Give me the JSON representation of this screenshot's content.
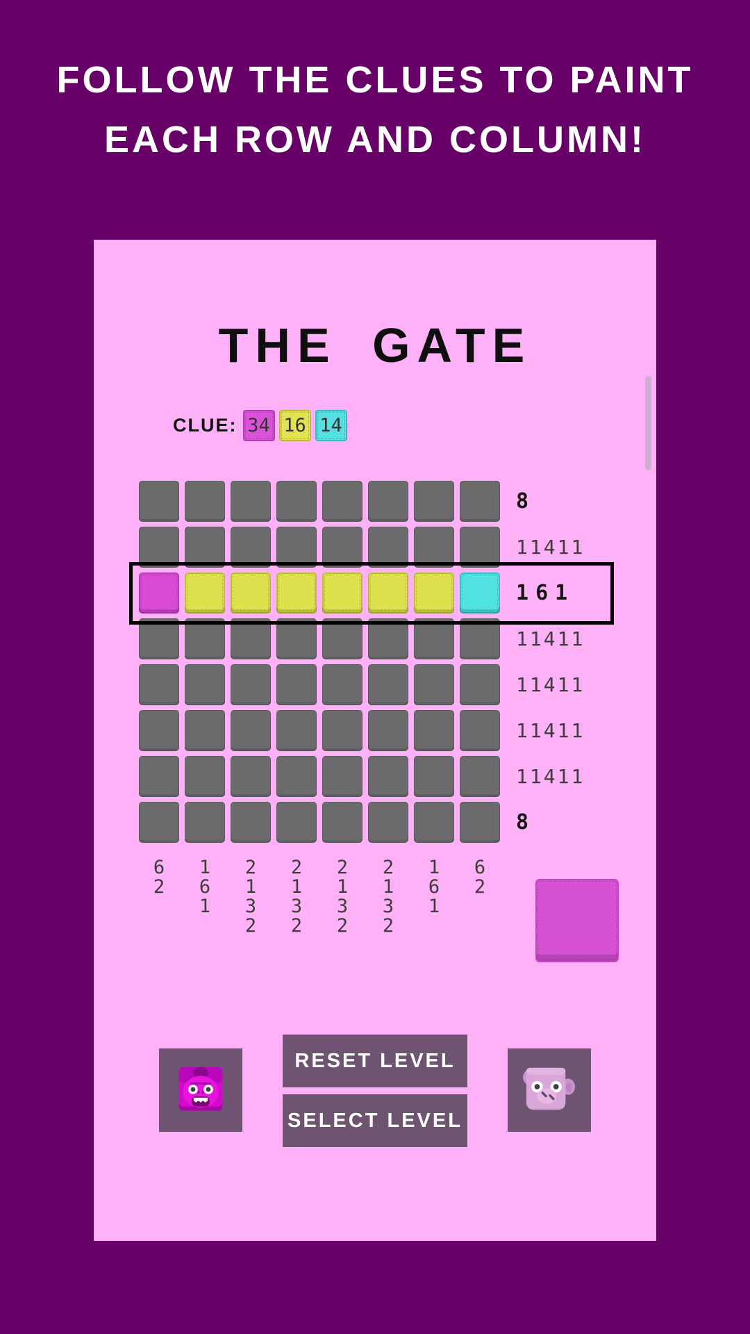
{
  "header": {
    "line1": "FOLLOW THE CLUES TO PAINT",
    "line2": "EACH ROW AND COLUMN!"
  },
  "level": {
    "title": "THE GATE"
  },
  "clue_bar": {
    "label": "CLUE:",
    "chips": [
      {
        "count": "34",
        "color_name": "magenta",
        "color": "#da52d8",
        "border": "#b43cb2"
      },
      {
        "count": "16",
        "color_name": "yellow",
        "color": "#e2e254",
        "border": "#b9b93f"
      },
      {
        "count": "14",
        "color_name": "cyan",
        "color": "#55dfe0",
        "border": "#3cb9ba"
      }
    ]
  },
  "grid": {
    "rows": 8,
    "cols": 8,
    "colors": {
      "empty": "#6b6a6c",
      "magenta": "#d94ad6",
      "yellow": "#dfe04e",
      "cyan": "#4fe2e0"
    },
    "cells": [
      [
        "empty",
        "empty",
        "empty",
        "empty",
        "empty",
        "empty",
        "empty",
        "empty"
      ],
      [
        "empty",
        "empty",
        "empty",
        "empty",
        "empty",
        "empty",
        "empty",
        "empty"
      ],
      [
        "magenta",
        "yellow",
        "yellow",
        "yellow",
        "yellow",
        "yellow",
        "yellow",
        "cyan"
      ],
      [
        "empty",
        "empty",
        "empty",
        "empty",
        "empty",
        "empty",
        "empty",
        "empty"
      ],
      [
        "empty",
        "empty",
        "empty",
        "empty",
        "empty",
        "empty",
        "empty",
        "empty"
      ],
      [
        "empty",
        "empty",
        "empty",
        "empty",
        "empty",
        "empty",
        "empty",
        "empty"
      ],
      [
        "empty",
        "empty",
        "empty",
        "empty",
        "empty",
        "empty",
        "empty",
        "empty"
      ],
      [
        "empty",
        "empty",
        "empty",
        "empty",
        "empty",
        "empty",
        "empty",
        "empty"
      ]
    ]
  },
  "row_clues": [
    {
      "digits": [
        "8"
      ],
      "bold": true
    },
    {
      "digits": [
        "1",
        "1",
        "4",
        "1",
        "1"
      ],
      "bold": false
    },
    {
      "digits": [
        "1",
        "6",
        "1"
      ],
      "bold": true
    },
    {
      "digits": [
        "1",
        "1",
        "4",
        "1",
        "1"
      ],
      "bold": false
    },
    {
      "digits": [
        "1",
        "1",
        "4",
        "1",
        "1"
      ],
      "bold": false
    },
    {
      "digits": [
        "1",
        "1",
        "4",
        "1",
        "1"
      ],
      "bold": false
    },
    {
      "digits": [
        "1",
        "1",
        "4",
        "1",
        "1"
      ],
      "bold": false
    },
    {
      "digits": [
        "8"
      ],
      "bold": true
    }
  ],
  "col_clues": [
    [
      "6",
      "2"
    ],
    [
      "1",
      "6",
      "1"
    ],
    [
      "2",
      "1",
      "3",
      "2"
    ],
    [
      "2",
      "1",
      "3",
      "2"
    ],
    [
      "2",
      "1",
      "3",
      "2"
    ],
    [
      "2",
      "1",
      "3",
      "2"
    ],
    [
      "1",
      "6",
      "1"
    ],
    [
      "6",
      "2"
    ]
  ],
  "highlight_row_index": 2,
  "palette": {
    "selected_color": "#d552d3",
    "selected_border": "#c644c4"
  },
  "buttons": {
    "reset": "RESET LEVEL",
    "select": "SELECT LEVEL"
  },
  "icons": {
    "left_button": "monster-face-icon",
    "right_button": "pig-face-icon"
  },
  "theme": {
    "background": "#670167",
    "panel": "#ffb1f7",
    "button": "#6e5470",
    "highlight_border": "#000000"
  }
}
